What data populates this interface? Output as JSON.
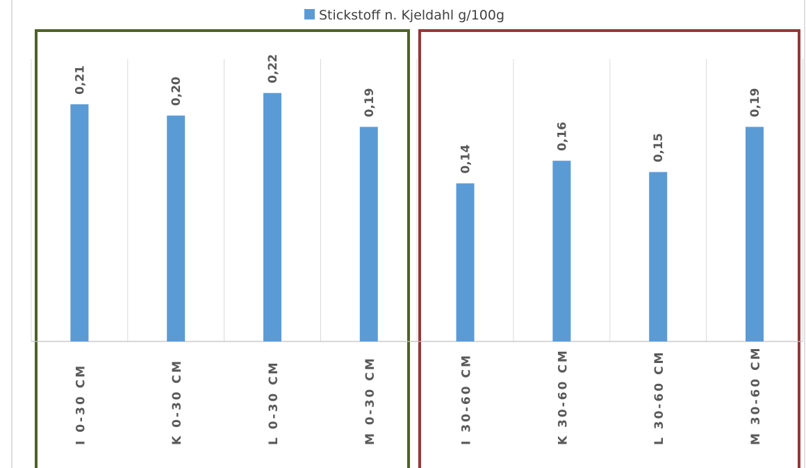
{
  "chart_data": {
    "type": "bar",
    "categories": [
      "I 0-30 CM",
      "K 0-30 CM",
      "L 0-30 CM",
      "M 0-30 CM",
      "I 30-60 CM",
      "K 30-60 CM",
      "L 30-60 CM",
      "M 30-60 CM"
    ],
    "series": [
      {
        "name": "Stickstoff  n. Kjeldahl g/100g",
        "values": [
          0.21,
          0.2,
          0.22,
          0.19,
          0.14,
          0.16,
          0.15,
          0.19
        ],
        "data_labels": [
          "0,21",
          "0,20",
          "0,22",
          "0,19",
          "0,14",
          "0,16",
          "0,15",
          "0,19"
        ]
      }
    ],
    "ylim": [
      0,
      0.25
    ],
    "grid": true,
    "legend_position": "top-center",
    "colors": {
      "bar": "#5b9bd5",
      "group_0_30_border": "#4f6228",
      "group_30_60_border": "#953735",
      "grid": "#d9d9d9",
      "axis": "#bfbfbf",
      "text": "#595959"
    }
  }
}
